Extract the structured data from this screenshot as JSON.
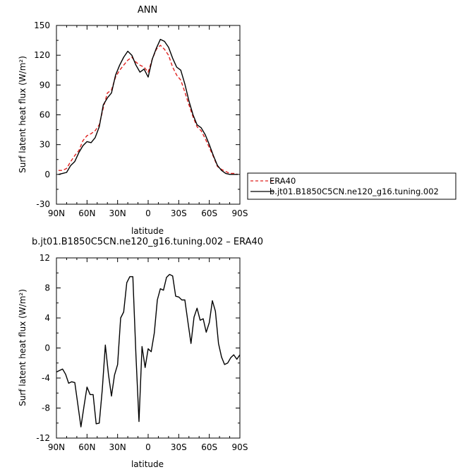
{
  "chart_data": [
    {
      "type": "line",
      "title": "ANN",
      "xlabel": "latitude",
      "ylabel": "Surf latent heat flux (W/m²)",
      "xlim": [
        90,
        -90
      ],
      "ylim": [
        -30,
        150
      ],
      "xticks": [
        90,
        60,
        30,
        0,
        -30,
        -60,
        -90
      ],
      "xtick_labels": [
        "90N",
        "60N",
        "30N",
        "0",
        "30S",
        "60S",
        "90S"
      ],
      "yticks": [
        -30,
        0,
        30,
        60,
        90,
        120,
        150
      ],
      "ytick_labels": [
        "-30",
        "0",
        "30",
        "60",
        "90",
        "120",
        "150"
      ],
      "legend_position": "right",
      "series": [
        {
          "name": "ERA40",
          "color": "#e0201e",
          "dash": "dashed",
          "x": [
            88,
            84,
            80,
            76,
            72,
            68,
            64,
            60,
            56,
            52,
            48,
            44,
            40,
            36,
            32,
            28,
            24,
            20,
            16,
            12,
            8,
            4,
            0,
            -4,
            -8,
            -12,
            -16,
            -20,
            -24,
            -28,
            -32,
            -36,
            -40,
            -44,
            -48,
            -52,
            -56,
            -60,
            -64,
            -68,
            -72,
            -76,
            -80,
            -84,
            -88
          ],
          "y": [
            4,
            4,
            6,
            13,
            19,
            24,
            34,
            39,
            41,
            44,
            50,
            67,
            82,
            85,
            98,
            105,
            110,
            115,
            118,
            113,
            110,
            108,
            103,
            116,
            126,
            130,
            126,
            120,
            108,
            100,
            95,
            83,
            70,
            58,
            48,
            44,
            36,
            27,
            18,
            8,
            5,
            3,
            1,
            1,
            0
          ]
        },
        {
          "name": "b.jt01.B1850C5CN.ne120_g16.tuning.002",
          "color": "#000000",
          "dash": "solid",
          "x": [
            88,
            84,
            80,
            76,
            72,
            68,
            64,
            60,
            56,
            52,
            48,
            44,
            40,
            36,
            32,
            28,
            24,
            20,
            16,
            12,
            8,
            4,
            0,
            -4,
            -8,
            -12,
            -16,
            -20,
            -24,
            -28,
            -32,
            -36,
            -40,
            -44,
            -48,
            -52,
            -56,
            -60,
            -64,
            -68,
            -72,
            -76,
            -80,
            -84,
            -88
          ],
          "y": [
            0,
            1,
            2,
            9,
            13,
            22,
            29,
            33,
            32,
            37,
            48,
            70,
            77,
            82,
            100,
            110,
            118,
            124,
            120,
            110,
            103,
            106,
            98,
            116,
            127,
            136,
            134,
            128,
            117,
            108,
            105,
            91,
            74,
            60,
            50,
            47,
            40,
            30,
            19,
            9,
            4,
            1,
            0,
            0,
            0
          ]
        }
      ]
    },
    {
      "type": "line",
      "title": "b.jt01.B1850C5CN.ne120_g16.tuning.002 – ERA40",
      "xlabel": "latitude",
      "ylabel": "Surf latent heat flux (W/m²)",
      "xlim": [
        90,
        -90
      ],
      "ylim": [
        -12,
        12
      ],
      "xticks": [
        90,
        60,
        30,
        0,
        -30,
        -60,
        -90
      ],
      "xtick_labels": [
        "90N",
        "60N",
        "30N",
        "0",
        "30S",
        "60S",
        "90S"
      ],
      "yticks": [
        -12,
        -8,
        -4,
        0,
        4,
        8,
        12
      ],
      "ytick_labels": [
        "-12",
        "-8",
        "-4",
        "0",
        "4",
        "8",
        "12"
      ],
      "series": [
        {
          "color": "#000000",
          "dash": "solid",
          "x": [
            90,
            87,
            84,
            81,
            78,
            75,
            72,
            69,
            66,
            63,
            60,
            57,
            54,
            51,
            48,
            45,
            42,
            39,
            36,
            33,
            30,
            27,
            24,
            21,
            18,
            15,
            12,
            9,
            6,
            3,
            0,
            -3,
            -6,
            -9,
            -12,
            -15,
            -18,
            -21,
            -24,
            -27,
            -30,
            -33,
            -36,
            -39,
            -42,
            -45,
            -48,
            -51,
            -54,
            -57,
            -60,
            -63,
            -66,
            -69,
            -72,
            -75,
            -78,
            -81,
            -84,
            -87,
            -90
          ],
          "y": [
            -3.2,
            -3.0,
            -2.8,
            -3.5,
            -4.7,
            -4.5,
            -4.6,
            -7.5,
            -10.5,
            -7.8,
            -5.2,
            -6.2,
            -6.2,
            -10.1,
            -10.0,
            -5.5,
            0.4,
            -3.5,
            -6.4,
            -3.6,
            -2.2,
            4.0,
            4.8,
            8.7,
            9.5,
            9.5,
            -1.0,
            -9.8,
            0.2,
            -2.6,
            -0.1,
            -0.5,
            2.0,
            6.4,
            7.9,
            7.7,
            9.4,
            9.8,
            9.6,
            6.9,
            6.8,
            6.4,
            6.4,
            3.5,
            0.6,
            4.1,
            5.3,
            3.7,
            3.9,
            2.1,
            3.4,
            6.3,
            4.9,
            0.6,
            -1.2,
            -2.2,
            -2.0,
            -1.3,
            -0.9,
            -1.5,
            -0.9
          ]
        }
      ]
    }
  ]
}
